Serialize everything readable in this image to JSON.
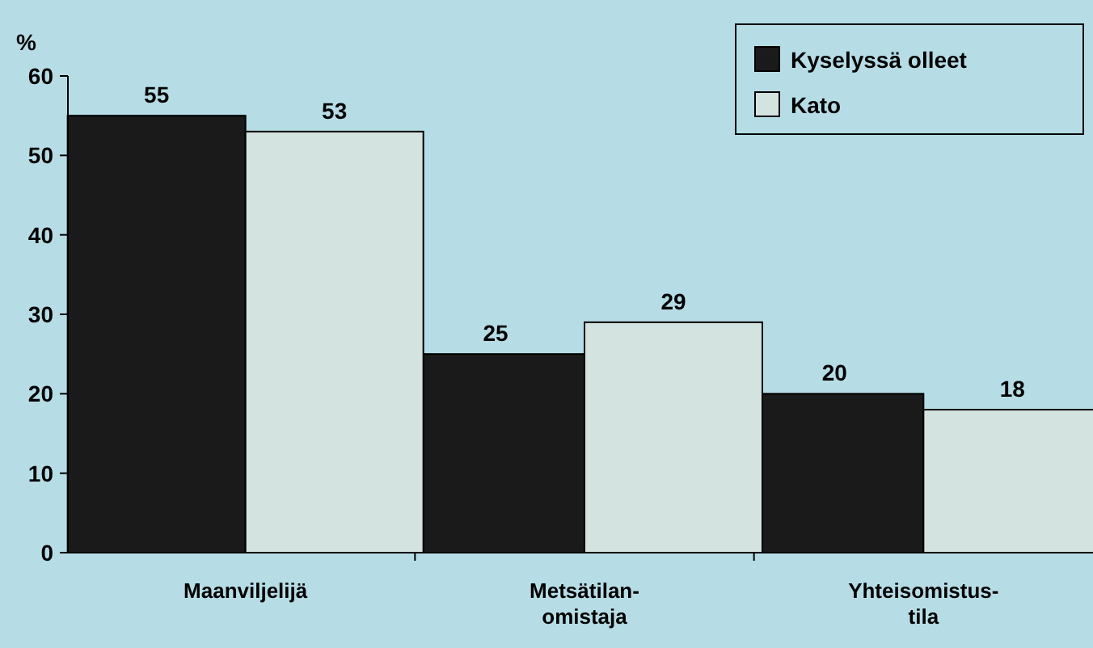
{
  "chart_data": {
    "type": "bar",
    "ylabel": "%",
    "categories": [
      "Maanviljelijä",
      "Metsätilan-\nomistaja",
      "Yhteisomistus-\ntila"
    ],
    "series": [
      {
        "name": "Kyselyssä olleet",
        "color": "#1a1a1a",
        "values": [
          55,
          25,
          20
        ]
      },
      {
        "name": "Kato",
        "color": "#d3e3e0",
        "values": [
          53,
          29,
          18
        ]
      }
    ],
    "ylim": [
      0,
      60
    ],
    "yticks": [
      0,
      10,
      20,
      30,
      40,
      50,
      60
    ],
    "data_labels": true,
    "legend": "top right",
    "grid": false
  }
}
